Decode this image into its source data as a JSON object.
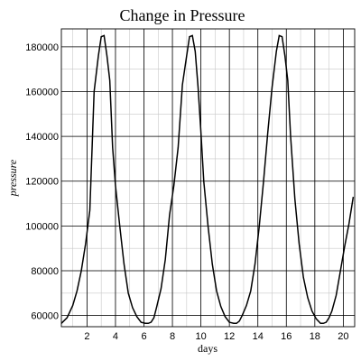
{
  "chart_data": {
    "type": "line",
    "title": "Change in Pressure",
    "xlabel": "days",
    "ylabel": "pressure",
    "xlim": [
      0.2,
      20.8
    ],
    "ylim": [
      55000,
      188000
    ],
    "x_ticks": [
      2,
      4,
      6,
      8,
      10,
      12,
      14,
      16,
      18,
      20
    ],
    "y_ticks": [
      60000,
      80000,
      100000,
      120000,
      140000,
      160000,
      180000
    ],
    "x_minor_step": 1,
    "y_minor_step": 10000,
    "grid": true,
    "series": [
      {
        "color": "#000000",
        "x": [
          0.2,
          0.6,
          1.0,
          1.3,
          1.6,
          1.9,
          2.2,
          2.5,
          2.8,
          3.0,
          3.2,
          3.4,
          3.6,
          3.8,
          4.0,
          4.3,
          4.6,
          4.9,
          5.2,
          5.5,
          5.8,
          6.1,
          6.3,
          6.5,
          6.7,
          6.9,
          7.2,
          7.5,
          7.8,
          8.1,
          8.4,
          8.7,
          9.0,
          9.2,
          9.4,
          9.6,
          9.8,
          10.0,
          10.2,
          10.5,
          10.8,
          11.1,
          11.4,
          11.7,
          12.0,
          12.3,
          12.5,
          12.7,
          12.9,
          13.2,
          13.5,
          13.8,
          14.1,
          14.4,
          14.7,
          15.0,
          15.3,
          15.5,
          15.7,
          15.9,
          16.1,
          16.3,
          16.6,
          16.9,
          17.2,
          17.5,
          17.8,
          18.1,
          18.4,
          18.6,
          18.8,
          19.0,
          19.2,
          19.5,
          19.8,
          20.1,
          20.4,
          20.7
        ],
        "y": [
          56500,
          59000,
          64500,
          71000,
          80000,
          92000,
          107000,
          160000,
          176000,
          184500,
          185000,
          176000,
          165000,
          135000,
          118000,
          100000,
          83000,
          70000,
          63500,
          59500,
          57000,
          56500,
          56500,
          57000,
          59000,
          64000,
          72000,
          85000,
          105000,
          118000,
          135000,
          163000,
          176000,
          184500,
          185000,
          178000,
          162000,
          142000,
          120000,
          100000,
          83000,
          71000,
          64000,
          59500,
          57000,
          56500,
          56500,
          57500,
          60000,
          64500,
          71000,
          83000,
          100000,
          120000,
          142000,
          162000,
          178000,
          185000,
          184500,
          176000,
          165000,
          140000,
          112000,
          92000,
          77000,
          68000,
          62000,
          58500,
          56500,
          56500,
          57000,
          59000,
          62000,
          69000,
          80000,
          91000,
          101000,
          113000
        ]
      }
    ]
  }
}
